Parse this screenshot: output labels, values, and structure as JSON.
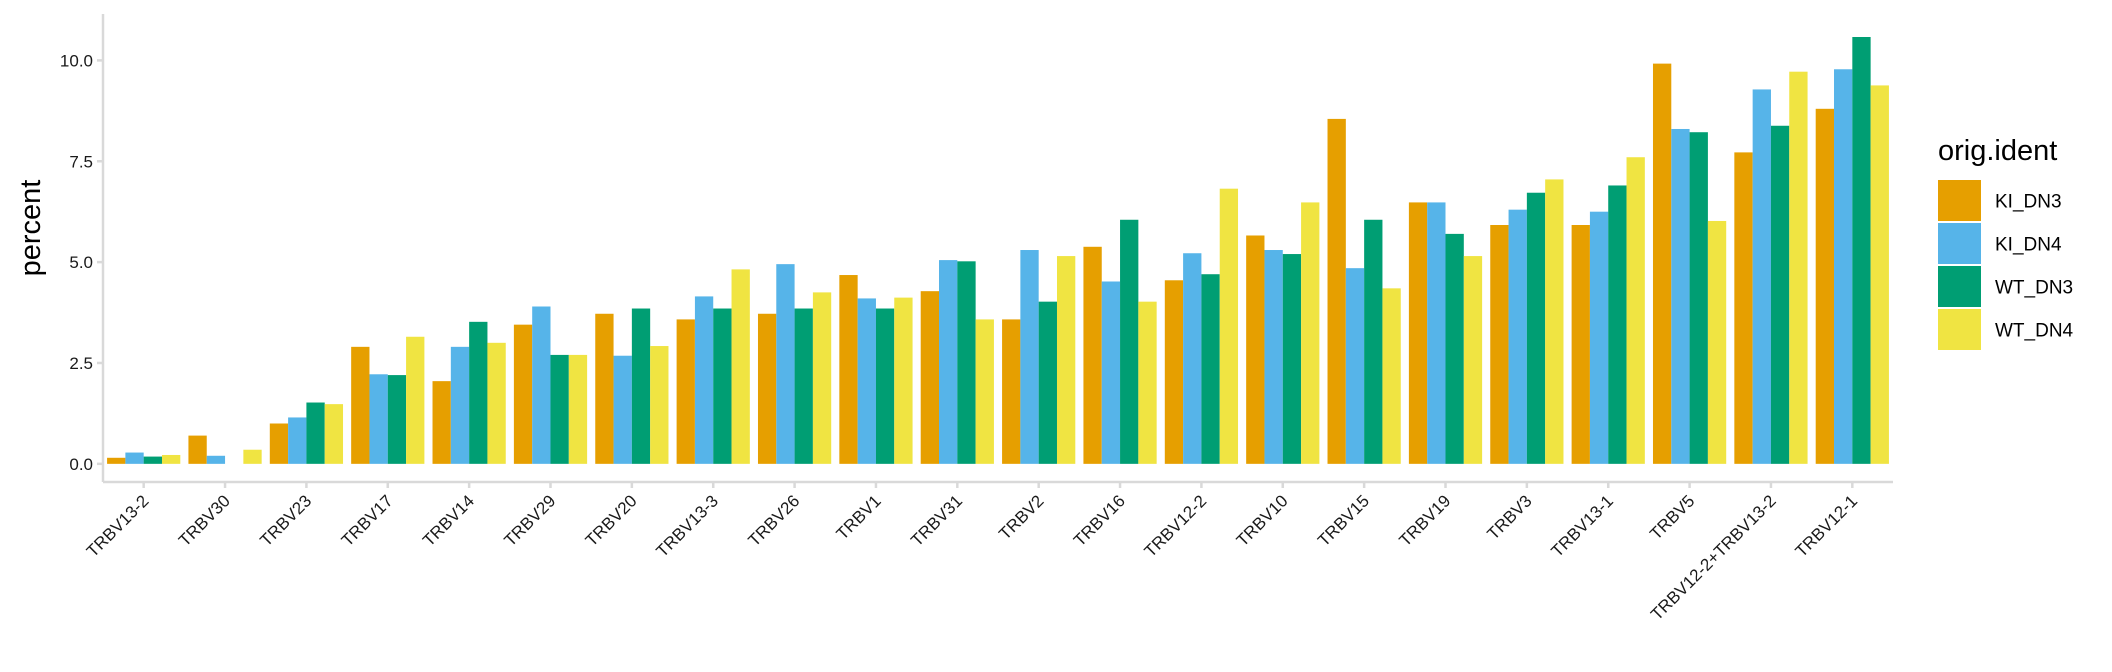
{
  "chart_data": {
    "type": "bar",
    "xlabel": "",
    "ylabel": "percent",
    "ylim": [
      -0.45,
      11.15
    ],
    "yticks": [
      0.0,
      2.5,
      5.0,
      7.5,
      10.0
    ],
    "ytick_labels": [
      "0.0",
      "2.5",
      "5.0",
      "7.5",
      "10.0"
    ],
    "grid": false,
    "legend_placement": "right",
    "legend_title": "orig.ident",
    "categories": [
      "TRBV13-2",
      "TRBV30",
      "TRBV23",
      "TRBV17",
      "TRBV14",
      "TRBV29",
      "TRBV20",
      "TRBV13-3",
      "TRBV26",
      "TRBV1",
      "TRBV31",
      "TRBV2",
      "TRBV16",
      "TRBV12-2",
      "TRBV10",
      "TRBV15",
      "TRBV19",
      "TRBV3",
      "TRBV13-1",
      "TRBV5",
      "TRBV12-2+TRBV13-2",
      "TRBV12-1"
    ],
    "series": [
      {
        "name": "KI_DN3",
        "color": "#E69F00",
        "values": [
          0.15,
          0.7,
          1.0,
          2.9,
          2.05,
          3.45,
          3.72,
          3.58,
          3.72,
          4.68,
          4.28,
          3.58,
          5.38,
          4.55,
          5.66,
          8.55,
          6.48,
          5.92,
          5.92,
          9.92,
          7.72,
          8.8
        ]
      },
      {
        "name": "KI_DN4",
        "color": "#56B4E9",
        "values": [
          0.28,
          0.2,
          1.15,
          2.22,
          2.9,
          3.9,
          2.68,
          4.15,
          4.95,
          4.1,
          5.05,
          5.3,
          4.52,
          5.22,
          5.3,
          4.85,
          6.48,
          6.3,
          6.25,
          8.3,
          9.28,
          9.78
        ]
      },
      {
        "name": "WT_DN3",
        "color": "#009E73",
        "values": [
          0.18,
          0.0,
          1.52,
          2.2,
          3.52,
          2.7,
          3.85,
          3.85,
          3.85,
          3.85,
          5.02,
          4.02,
          6.05,
          4.7,
          5.2,
          6.05,
          5.7,
          6.72,
          6.9,
          8.22,
          8.38,
          10.58
        ]
      },
      {
        "name": "WT_DN4",
        "color": "#F0E442",
        "values": [
          0.22,
          0.35,
          1.48,
          3.15,
          3.0,
          2.7,
          2.92,
          4.82,
          4.25,
          4.12,
          3.58,
          5.15,
          4.02,
          6.82,
          6.48,
          4.35,
          5.15,
          7.05,
          7.6,
          6.02,
          9.72,
          9.38
        ]
      }
    ]
  },
  "colors": {
    "axis": "#d9d9d9",
    "tick_text": "#1a1a1a"
  }
}
